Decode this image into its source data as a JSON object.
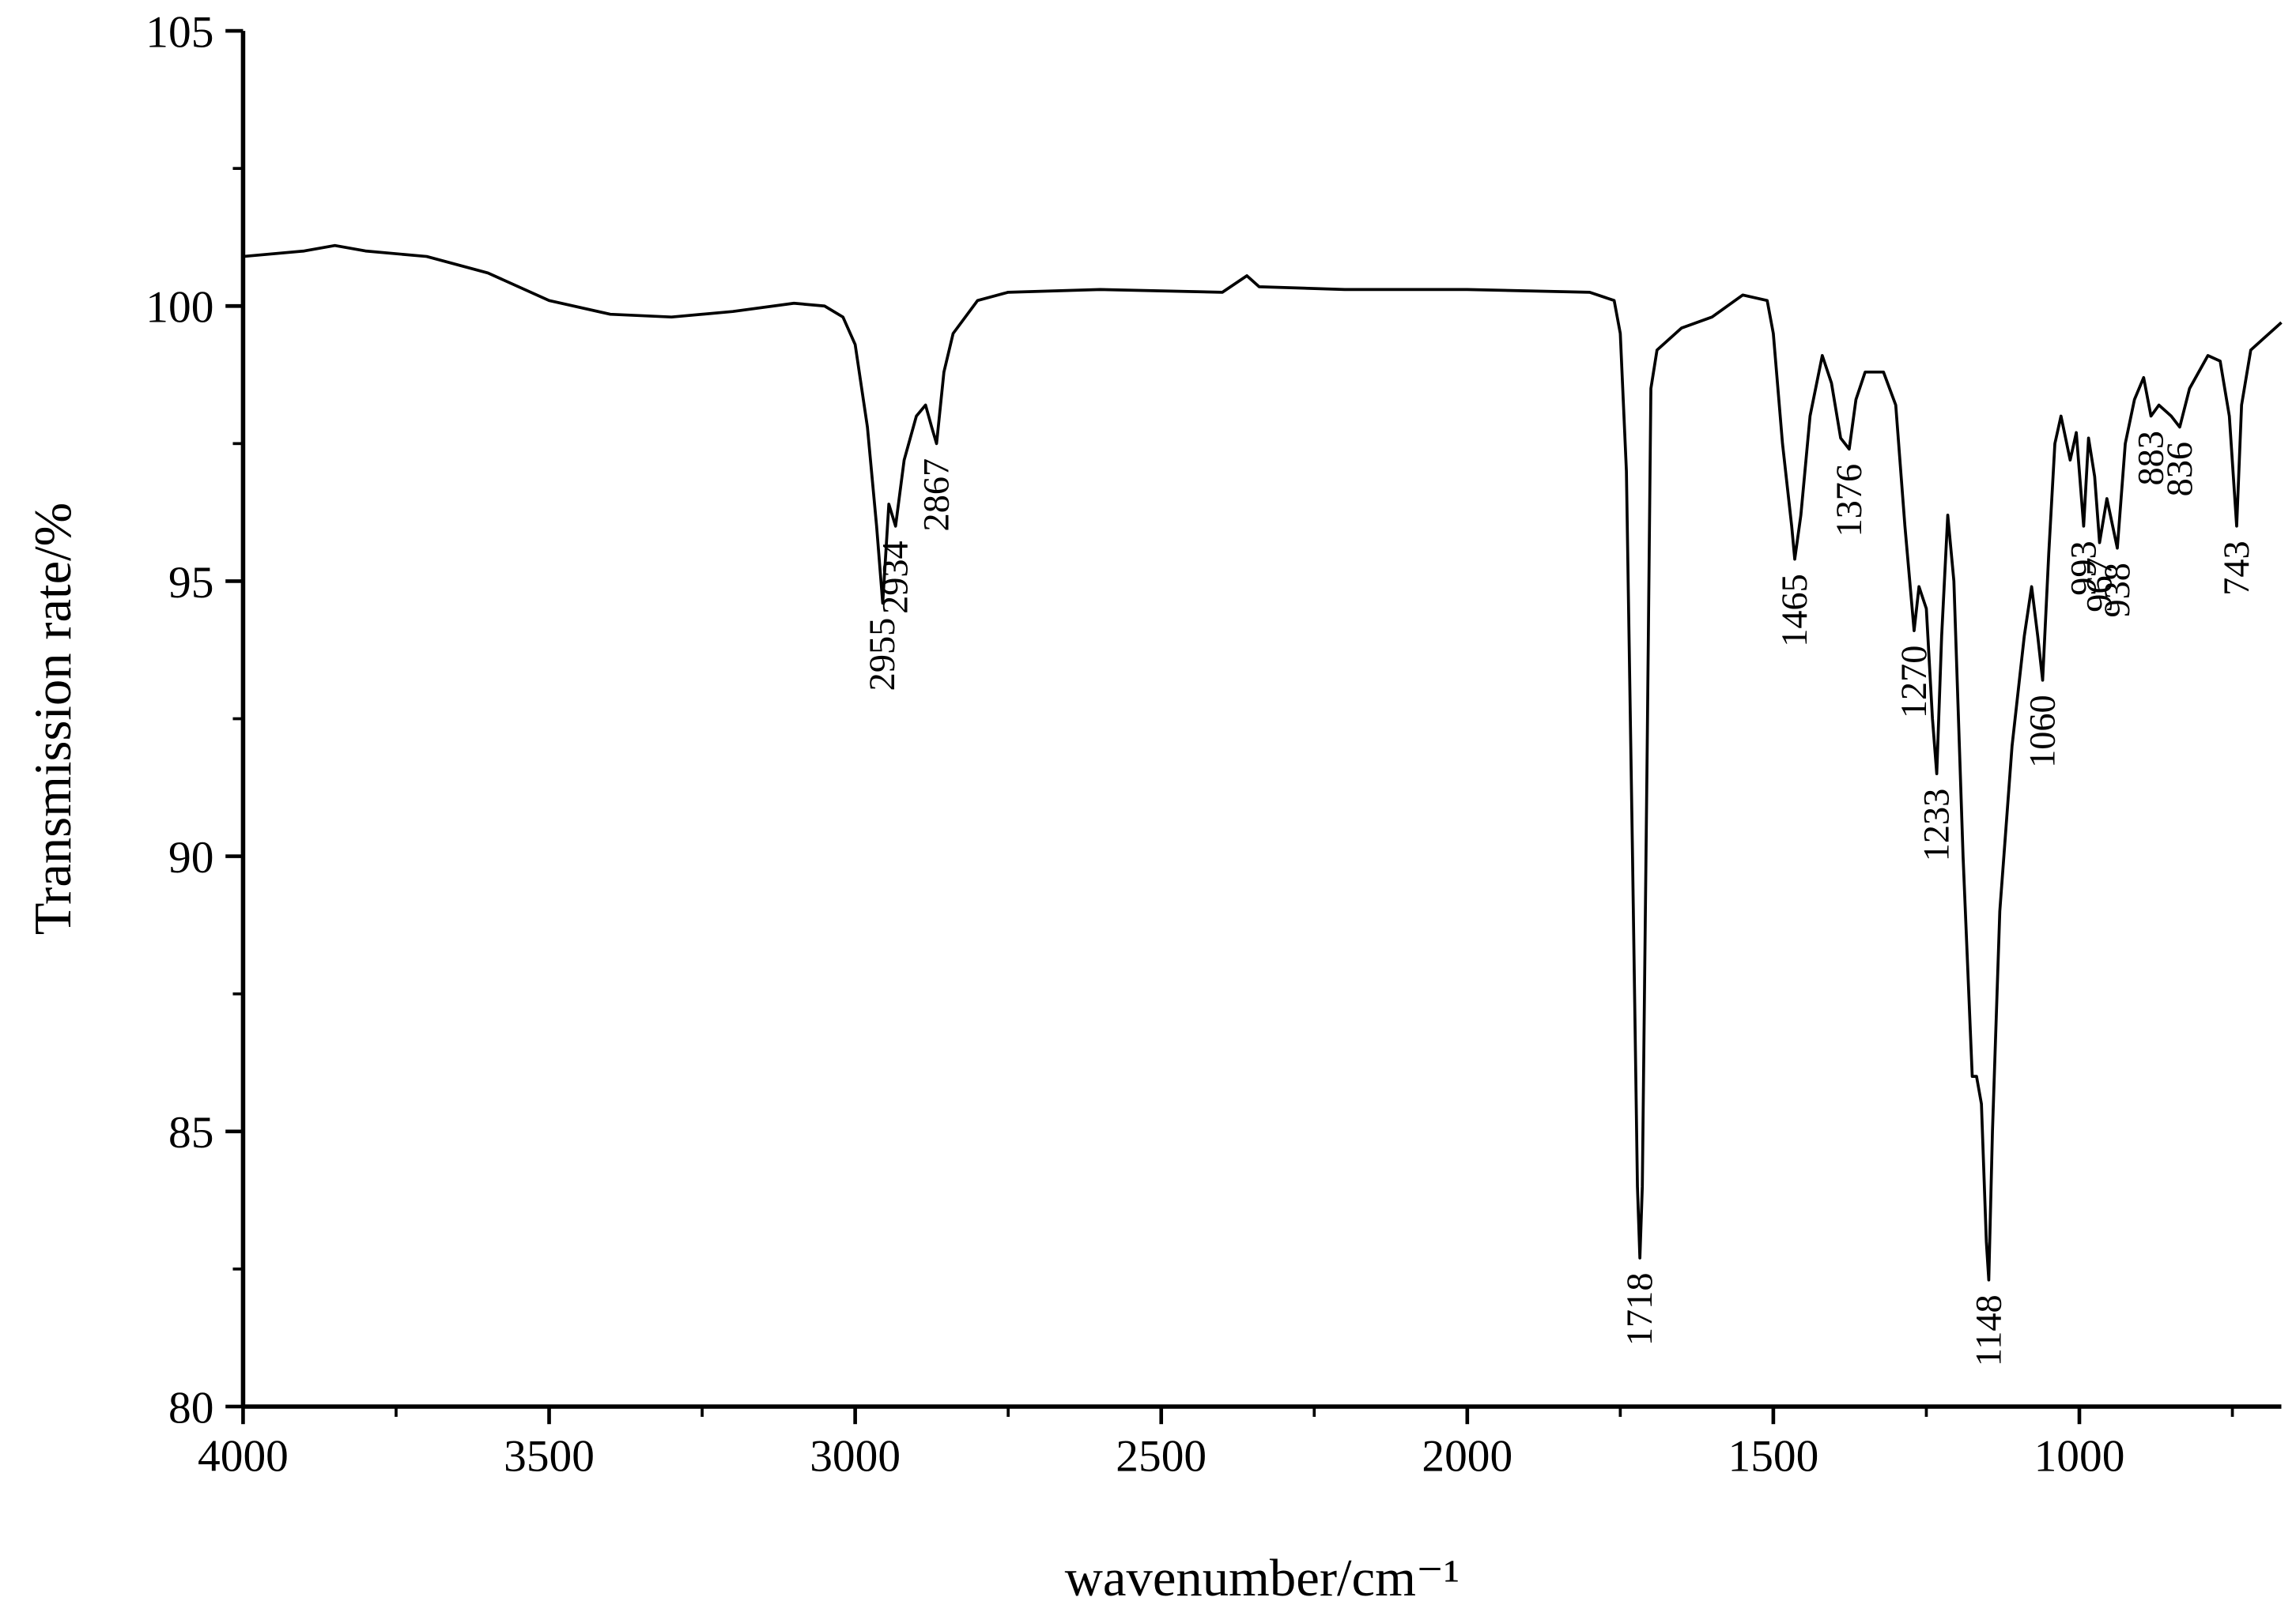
{
  "chart_data": {
    "type": "line",
    "x_label": "wavenumber/cm⁻¹",
    "y_label": "Transmission rate/%",
    "color": "#000000",
    "xlim": [
      4000,
      670
    ],
    "ylim": [
      80,
      105
    ],
    "xticks": [
      4000,
      3500,
      3000,
      2500,
      2000,
      1500,
      1000
    ],
    "yticks": [
      80,
      85,
      90,
      95,
      100,
      105
    ],
    "x": [
      4000,
      3900,
      3850,
      3800,
      3700,
      3600,
      3500,
      3400,
      3300,
      3200,
      3100,
      3050,
      3020,
      3000,
      2980,
      2965,
      2955,
      2945,
      2934,
      2920,
      2900,
      2885,
      2875,
      2867,
      2855,
      2840,
      2800,
      2750,
      2600,
      2400,
      2360,
      2340,
      2200,
      2000,
      1800,
      1760,
      1750,
      1740,
      1730,
      1722,
      1718,
      1714,
      1706,
      1700,
      1690,
      1650,
      1600,
      1550,
      1510,
      1500,
      1485,
      1470,
      1465,
      1455,
      1440,
      1420,
      1405,
      1390,
      1376,
      1365,
      1350,
      1320,
      1300,
      1285,
      1270,
      1262,
      1250,
      1240,
      1233,
      1225,
      1215,
      1205,
      1190,
      1175,
      1168,
      1160,
      1152,
      1148,
      1142,
      1130,
      1110,
      1090,
      1078,
      1068,
      1060,
      1050,
      1040,
      1030,
      1015,
      1005,
      993,
      985,
      975,
      967,
      955,
      938,
      925,
      910,
      895,
      883,
      870,
      850,
      836,
      820,
      790,
      770,
      755,
      743,
      735,
      720,
      700,
      680,
      670
    ],
    "values": [
      100.9,
      101.0,
      101.1,
      101.0,
      100.9,
      100.6,
      100.1,
      99.85,
      99.8,
      99.9,
      100.05,
      100.0,
      99.8,
      99.3,
      97.8,
      96.0,
      94.6,
      96.4,
      96.0,
      97.2,
      98.0,
      98.2,
      97.8,
      97.5,
      98.8,
      99.5,
      100.1,
      100.25,
      100.3,
      100.25,
      100.55,
      100.35,
      100.3,
      100.3,
      100.25,
      100.1,
      99.5,
      97.0,
      90.0,
      84.0,
      82.7,
      84.0,
      92.0,
      98.5,
      99.2,
      99.6,
      99.8,
      100.2,
      100.1,
      99.5,
      97.5,
      96.0,
      95.4,
      96.2,
      98.0,
      99.1,
      98.6,
      97.6,
      97.4,
      98.3,
      98.8,
      98.8,
      98.2,
      96.0,
      94.1,
      94.9,
      94.5,
      92.5,
      91.5,
      94.0,
      96.2,
      95.0,
      90.0,
      86.0,
      86.0,
      85.5,
      83.0,
      82.3,
      85.0,
      89.0,
      92.0,
      94.0,
      94.9,
      94.0,
      93.2,
      95.5,
      97.5,
      98.0,
      97.2,
      97.7,
      96.0,
      97.6,
      96.9,
      95.7,
      96.5,
      95.6,
      97.5,
      98.3,
      98.7,
      98.0,
      98.2,
      98.0,
      97.8,
      98.5,
      99.1,
      99.0,
      98.0,
      96.0,
      98.2,
      99.2,
      99.4,
      99.6,
      99.7
    ],
    "peaks": [
      2955,
      2934,
      2867,
      1718,
      1465,
      1376,
      1270,
      1233,
      1148,
      1060,
      993,
      967,
      938,
      883,
      836,
      743
    ]
  }
}
